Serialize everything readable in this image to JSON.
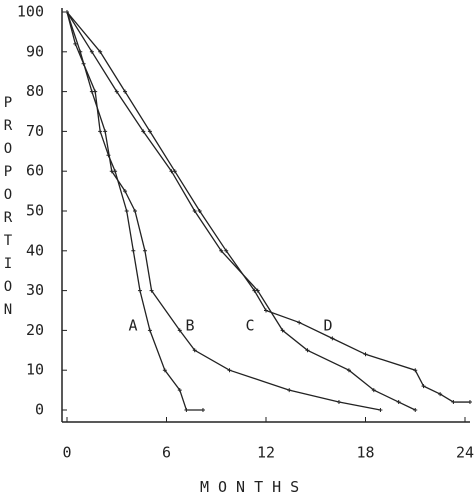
{
  "chart_data": {
    "type": "line",
    "y_label": "PROPORTION",
    "x_label": "MONTHS",
    "xlim": [
      0,
      24
    ],
    "ylim": [
      0,
      100
    ],
    "xticks": [
      0,
      6,
      12,
      18,
      24
    ],
    "yticks": [
      0,
      10,
      20,
      30,
      40,
      50,
      60,
      70,
      80,
      90,
      100
    ],
    "color": "#222",
    "series": [
      {
        "name": "A",
        "x": [
          0,
          0.5,
          1.0,
          1.7,
          2.0,
          2.5,
          2.9,
          3.6,
          4.0,
          4.4,
          5.0,
          5.9,
          6.8,
          7.2,
          8.2
        ],
        "values": [
          100,
          92,
          87,
          80,
          70,
          64,
          60,
          50,
          40,
          30,
          20,
          10,
          5,
          0,
          0
        ]
      },
      {
        "name": "B",
        "x": [
          0,
          0.8,
          1.5,
          2.3,
          2.7,
          3.5,
          4.1,
          4.7,
          5.1,
          6.8,
          7.7,
          9.8,
          13.4,
          16.4,
          18.9
        ],
        "values": [
          100,
          90,
          80,
          70,
          60,
          55,
          50,
          40,
          30,
          20,
          15,
          10,
          5,
          2,
          0
        ]
      },
      {
        "name": "C",
        "x": [
          0,
          1.5,
          3.0,
          4.6,
          6.3,
          7.7,
          9.3,
          11.5,
          13.0,
          14.5,
          17.0,
          18.5,
          20.0,
          21.0
        ],
        "values": [
          100,
          90,
          80,
          70,
          60,
          50,
          40,
          30,
          20,
          15,
          10,
          5,
          2,
          0
        ]
      },
      {
        "name": "D",
        "x": [
          0,
          2.0,
          3.5,
          5.0,
          6.5,
          8.0,
          9.6,
          11.3,
          12.0,
          14.0,
          16.0,
          18.0,
          21.0,
          21.5,
          22.5,
          23.3,
          24.3
        ],
        "values": [
          100,
          90,
          80,
          70,
          60,
          50,
          40,
          30,
          25,
          22,
          18,
          14,
          10,
          6,
          4,
          2,
          2
        ]
      }
    ]
  }
}
